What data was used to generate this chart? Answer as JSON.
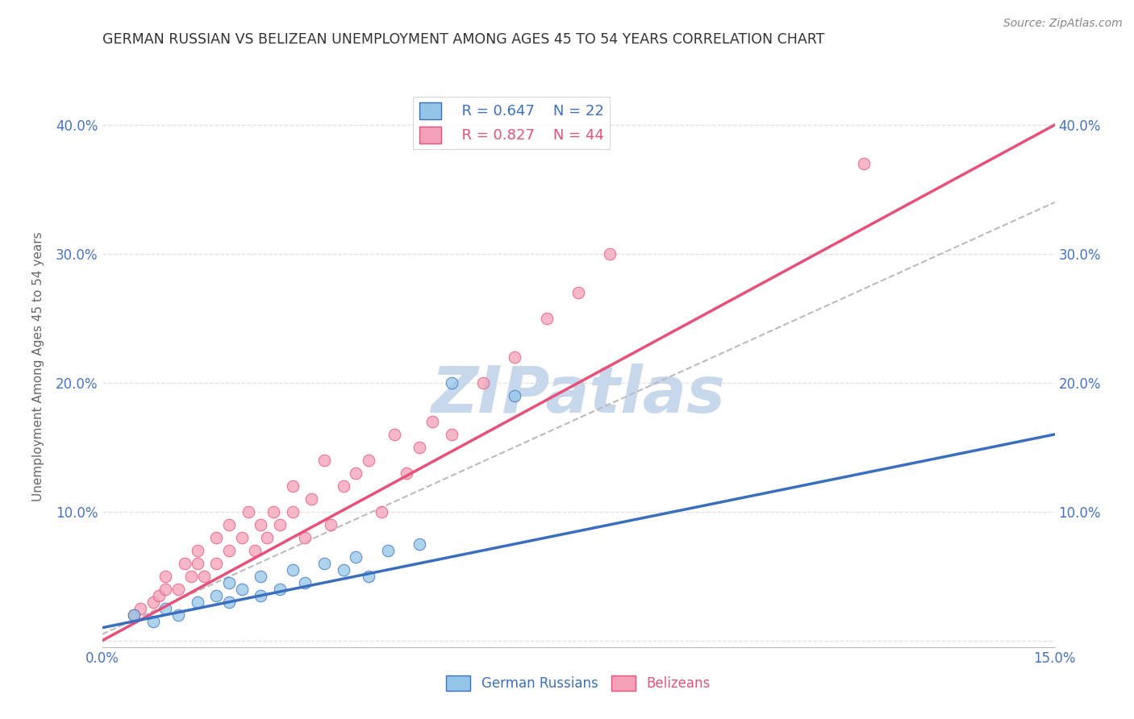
{
  "title": "GERMAN RUSSIAN VS BELIZEAN UNEMPLOYMENT AMONG AGES 45 TO 54 YEARS CORRELATION CHART",
  "source": "Source: ZipAtlas.com",
  "ylabel": "Unemployment Among Ages 45 to 54 years",
  "xlim": [
    0.0,
    0.15
  ],
  "ylim": [
    -0.005,
    0.43
  ],
  "blue_color": "#92C5E8",
  "pink_color": "#F4A0B8",
  "blue_line_color": "#3A6FBF",
  "pink_line_color": "#E8507A",
  "gray_line_color": "#BBBBBB",
  "tick_color": "#4472C4",
  "legend_R_blue": "R = 0.647",
  "legend_N_blue": "N = 22",
  "legend_R_pink": "R = 0.827",
  "legend_N_pink": "N = 44",
  "blue_scatter_x": [
    0.005,
    0.008,
    0.01,
    0.012,
    0.015,
    0.018,
    0.02,
    0.02,
    0.022,
    0.025,
    0.025,
    0.028,
    0.03,
    0.032,
    0.035,
    0.038,
    0.04,
    0.042,
    0.045,
    0.05,
    0.055,
    0.065
  ],
  "blue_scatter_y": [
    0.02,
    0.015,
    0.025,
    0.02,
    0.03,
    0.035,
    0.03,
    0.045,
    0.04,
    0.05,
    0.035,
    0.04,
    0.055,
    0.045,
    0.06,
    0.055,
    0.065,
    0.05,
    0.07,
    0.075,
    0.2,
    0.19
  ],
  "pink_scatter_x": [
    0.005,
    0.006,
    0.008,
    0.009,
    0.01,
    0.01,
    0.012,
    0.013,
    0.014,
    0.015,
    0.015,
    0.016,
    0.018,
    0.018,
    0.02,
    0.02,
    0.022,
    0.023,
    0.024,
    0.025,
    0.026,
    0.027,
    0.028,
    0.03,
    0.03,
    0.032,
    0.033,
    0.035,
    0.036,
    0.038,
    0.04,
    0.042,
    0.044,
    0.046,
    0.048,
    0.05,
    0.052,
    0.055,
    0.06,
    0.065,
    0.07,
    0.075,
    0.08,
    0.12
  ],
  "pink_scatter_y": [
    0.02,
    0.025,
    0.03,
    0.035,
    0.04,
    0.05,
    0.04,
    0.06,
    0.05,
    0.06,
    0.07,
    0.05,
    0.08,
    0.06,
    0.07,
    0.09,
    0.08,
    0.1,
    0.07,
    0.09,
    0.08,
    0.1,
    0.09,
    0.1,
    0.12,
    0.08,
    0.11,
    0.14,
    0.09,
    0.12,
    0.13,
    0.14,
    0.1,
    0.16,
    0.13,
    0.15,
    0.17,
    0.16,
    0.2,
    0.22,
    0.25,
    0.27,
    0.3,
    0.37
  ],
  "blue_line_x": [
    0.0,
    0.15
  ],
  "blue_line_y": [
    0.01,
    0.16
  ],
  "pink_line_x": [
    0.0,
    0.15
  ],
  "pink_line_y": [
    0.0,
    0.4
  ],
  "gray_line_x": [
    0.0,
    0.15
  ],
  "gray_line_y": [
    0.005,
    0.34
  ],
  "watermark": "ZIPatlas",
  "watermark_color": "#C8D8EC",
  "background_color": "#FFFFFF",
  "grid_color": "#E0E0E0"
}
